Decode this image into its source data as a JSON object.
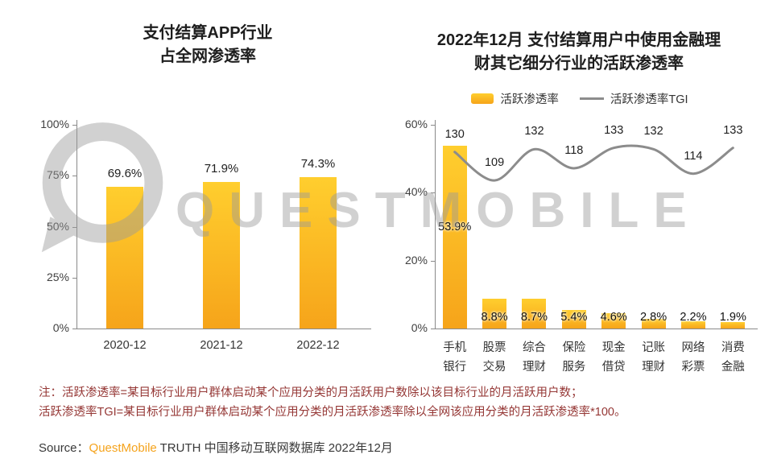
{
  "watermark": {
    "text": "QUESTMOBILE"
  },
  "colors": {
    "bar_gradient_top": "#FFCE2E",
    "bar_gradient_bottom": "#F6A41A",
    "tgi_line": "#8C8C8C",
    "axis": "#8A8A8A",
    "note_text": "#953735",
    "brand_orange": "#F5A31C",
    "watermark": "#9A9A9A"
  },
  "left_chart": {
    "title_line1": "支付结算APP行业",
    "title_line2": "占全网渗透率"
  },
  "right_chart": {
    "title_line1": "2022年12月 支付结算用户中使用金融理",
    "title_line2": "财其它细分行业的活跃渗透率"
  },
  "notes": {
    "line1": "注：活跃渗透率=某目标行业用户群体启动某个应用分类的月活跃用户数除以该目标行业的月活跃用户数；",
    "line2": "活跃渗透率TGI=某目标行业用户群体启动某个应用分类的月活跃渗透率除以全网该应用分类的月活跃渗透率*100。"
  },
  "source": {
    "prefix": "Source：",
    "brand": "QuestMobile",
    "suffix": " TRUTH 中国移动互联网数据库 2022年12月"
  },
  "chart_data": [
    {
      "type": "bar",
      "title": "支付结算APP行业占全网渗透率",
      "categories": [
        "2020-12",
        "2021-12",
        "2022-12"
      ],
      "values": [
        69.6,
        71.9,
        74.3
      ],
      "value_suffix": "%",
      "ylim": [
        0,
        100
      ],
      "yticks": [
        0,
        25,
        50,
        75,
        100
      ],
      "grid": false
    },
    {
      "type": "bar+line",
      "title": "2022年12月 支付结算用户中使用金融理财其它细分行业的活跃渗透率",
      "categories": [
        "手机银行",
        "股票交易",
        "综合理财",
        "保险服务",
        "现金借贷",
        "记账理财",
        "网络彩票",
        "消费金融"
      ],
      "series": [
        {
          "name": "活跃渗透率",
          "type": "bar",
          "values": [
            53.9,
            8.8,
            8.7,
            5.4,
            4.6,
            2.8,
            2.2,
            1.9
          ],
          "value_suffix": "%"
        },
        {
          "name": "活跃渗透率TGI",
          "type": "line",
          "values": [
            130,
            109,
            132,
            118,
            133,
            132,
            114,
            133
          ]
        }
      ],
      "ylim": [
        0,
        60
      ],
      "yticks": [
        0,
        20,
        40,
        60
      ],
      "line_axis_max": 150,
      "legend_position": "top",
      "grid": false
    }
  ]
}
